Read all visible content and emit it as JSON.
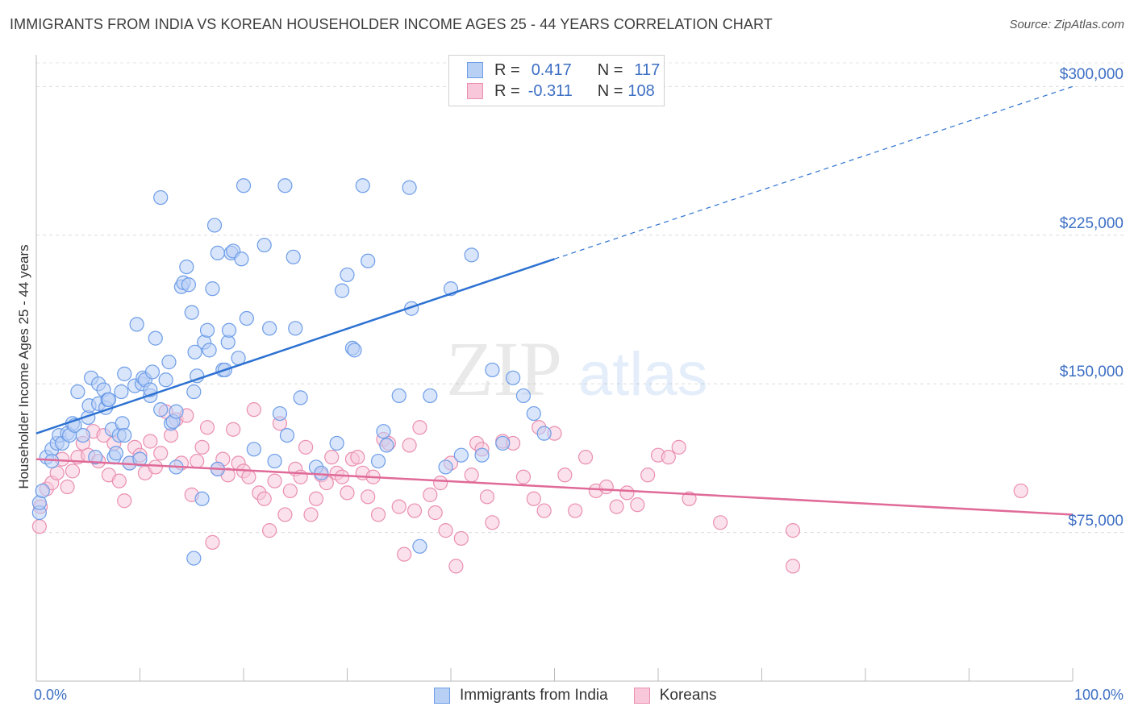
{
  "title": "IMMIGRANTS FROM INDIA VS KOREAN HOUSEHOLDER INCOME AGES 25 - 44 YEARS CORRELATION CHART",
  "source": "Source: ZipAtlas.com",
  "watermark": {
    "zip": "ZIP",
    "atlas": "atlas"
  },
  "legend": {
    "r_label": "R =",
    "n_label": "N =",
    "india": {
      "r": "0.417",
      "n": "117"
    },
    "korea": {
      "r": "-0.311",
      "n": "108"
    }
  },
  "chart_data": {
    "type": "scatter",
    "title": "IMMIGRANTS FROM INDIA VS KOREAN HOUSEHOLDER INCOME AGES 25 - 44 YEARS CORRELATION CHART",
    "xlabel": "",
    "ylabel": "Householder Income Ages 25 - 44 years",
    "xlim": [
      0,
      100
    ],
    "ylim": [
      0,
      316000
    ],
    "x_tick_labels": [
      "0.0%",
      "100.0%"
    ],
    "y_ticks": [
      75000,
      150000,
      225000,
      300000
    ],
    "y_tick_labels": [
      "$75,000",
      "$150,000",
      "$225,000",
      "$300,000"
    ],
    "grid": true,
    "legend_position": "top-center",
    "colors": {
      "india": "#6d9de8",
      "india_fill": "#b9d0f5",
      "india_line": "#2d72d2",
      "korea": "#ea8fb0",
      "korea_fill": "#f8c8da",
      "korea_line": "#e06a98"
    },
    "series": [
      {
        "name": "Immigrants from India",
        "trend": {
          "x": [
            0,
            50
          ],
          "y": [
            125000,
            213000
          ],
          "dashed_to": [
            100,
            300000
          ]
        },
        "points": [
          [
            0.3,
            85000
          ],
          [
            0.3,
            90000
          ],
          [
            0.6,
            96000
          ],
          [
            1,
            113000
          ],
          [
            1.5,
            117000
          ],
          [
            1.5,
            111000
          ],
          [
            2,
            120000
          ],
          [
            2.2,
            124000
          ],
          [
            2.5,
            120000
          ],
          [
            3,
            125000
          ],
          [
            3.2,
            124000
          ],
          [
            3.5,
            130000
          ],
          [
            3.7,
            129000
          ],
          [
            4,
            146000
          ],
          [
            4.5,
            124000
          ],
          [
            5,
            133000
          ],
          [
            5.1,
            139000
          ],
          [
            5.3,
            153000
          ],
          [
            5.7,
            113000
          ],
          [
            6,
            140000
          ],
          [
            6,
            150000
          ],
          [
            6.5,
            147000
          ],
          [
            6.7,
            138000
          ],
          [
            6.9,
            142000
          ],
          [
            7,
            142000
          ],
          [
            7.3,
            127000
          ],
          [
            7.5,
            113000
          ],
          [
            7.7,
            115000
          ],
          [
            8,
            124000
          ],
          [
            8.2,
            146000
          ],
          [
            8.3,
            130000
          ],
          [
            8.5,
            155000
          ],
          [
            8.5,
            124000
          ],
          [
            9,
            110000
          ],
          [
            9.5,
            149000
          ],
          [
            9.7,
            180000
          ],
          [
            10,
            112000
          ],
          [
            10.2,
            150000
          ],
          [
            10.3,
            153000
          ],
          [
            10.5,
            152000
          ],
          [
            11,
            144000
          ],
          [
            11,
            147000
          ],
          [
            11.2,
            156000
          ],
          [
            11.5,
            173000
          ],
          [
            12,
            244000
          ],
          [
            12,
            137000
          ],
          [
            12.5,
            152000
          ],
          [
            12.8,
            161000
          ],
          [
            13,
            130000
          ],
          [
            13.2,
            131000
          ],
          [
            13.5,
            136000
          ],
          [
            13.5,
            108000
          ],
          [
            14,
            199000
          ],
          [
            14.2,
            201000
          ],
          [
            14.5,
            209000
          ],
          [
            14.7,
            200000
          ],
          [
            15,
            186000
          ],
          [
            15.2,
            146000
          ],
          [
            15.2,
            62000
          ],
          [
            15.3,
            166000
          ],
          [
            15.5,
            154000
          ],
          [
            16,
            92000
          ],
          [
            16.2,
            171000
          ],
          [
            16.5,
            177000
          ],
          [
            16.7,
            167000
          ],
          [
            17,
            198000
          ],
          [
            17.2,
            230000
          ],
          [
            17.5,
            216000
          ],
          [
            17.5,
            107000
          ],
          [
            18,
            157000
          ],
          [
            18.2,
            157000
          ],
          [
            18.5,
            171000
          ],
          [
            18.6,
            177000
          ],
          [
            18.8,
            216000
          ],
          [
            19,
            217000
          ],
          [
            19.5,
            163000
          ],
          [
            19.8,
            213000
          ],
          [
            20,
            250000
          ],
          [
            20.3,
            183000
          ],
          [
            21,
            117000
          ],
          [
            22,
            220000
          ],
          [
            22.5,
            178000
          ],
          [
            23,
            111000
          ],
          [
            23.5,
            135000
          ],
          [
            24,
            250000
          ],
          [
            24.2,
            124000
          ],
          [
            24.8,
            214000
          ],
          [
            25,
            178000
          ],
          [
            25.5,
            143000
          ],
          [
            27,
            108000
          ],
          [
            27.5,
            105000
          ],
          [
            29,
            120000
          ],
          [
            29.5,
            197000
          ],
          [
            30,
            205000
          ],
          [
            30.5,
            168000
          ],
          [
            30.7,
            167000
          ],
          [
            31.5,
            250000
          ],
          [
            32,
            212000
          ],
          [
            33,
            111000
          ],
          [
            33.5,
            126000
          ],
          [
            33.8,
            119000
          ],
          [
            35,
            144000
          ],
          [
            36,
            249000
          ],
          [
            36.2,
            188000
          ],
          [
            37,
            68000
          ],
          [
            38,
            144000
          ],
          [
            39.5,
            108000
          ],
          [
            40,
            198000
          ],
          [
            41,
            114000
          ],
          [
            42,
            215000
          ],
          [
            43,
            114000
          ],
          [
            44,
            157000
          ],
          [
            45,
            120000
          ],
          [
            46,
            153000
          ],
          [
            47,
            144000
          ],
          [
            48,
            135000
          ],
          [
            49,
            125000
          ]
        ]
      },
      {
        "name": "Koreans",
        "trend": {
          "x": [
            0,
            100
          ],
          "y": [
            112000,
            84000
          ]
        },
        "points": [
          [
            0.3,
            78000
          ],
          [
            0.4,
            88000
          ],
          [
            1,
            97000
          ],
          [
            1.5,
            100000
          ],
          [
            2,
            105000
          ],
          [
            2.5,
            112000
          ],
          [
            3,
            98000
          ],
          [
            3.5,
            106000
          ],
          [
            4,
            113000
          ],
          [
            4.5,
            120000
          ],
          [
            5,
            114000
          ],
          [
            5.5,
            126000
          ],
          [
            6,
            111000
          ],
          [
            6.5,
            124000
          ],
          [
            7,
            104000
          ],
          [
            7.5,
            120000
          ],
          [
            8,
            101000
          ],
          [
            8.5,
            91000
          ],
          [
            9,
            110000
          ],
          [
            9.5,
            118000
          ],
          [
            10,
            114000
          ],
          [
            10.5,
            105000
          ],
          [
            11,
            121000
          ],
          [
            11.5,
            108000
          ],
          [
            12,
            115000
          ],
          [
            12.5,
            136000
          ],
          [
            13,
            124000
          ],
          [
            13.5,
            132000
          ],
          [
            14,
            110000
          ],
          [
            14.5,
            134000
          ],
          [
            15,
            94000
          ],
          [
            15.5,
            111000
          ],
          [
            16,
            118000
          ],
          [
            16.5,
            128000
          ],
          [
            17,
            70000
          ],
          [
            17.5,
            107000
          ],
          [
            18,
            112000
          ],
          [
            18.5,
            104000
          ],
          [
            19,
            127000
          ],
          [
            19.5,
            110000
          ],
          [
            20,
            106000
          ],
          [
            20.5,
            103000
          ],
          [
            21,
            137000
          ],
          [
            21.5,
            95000
          ],
          [
            22,
            92000
          ],
          [
            22.5,
            76000
          ],
          [
            23,
            101000
          ],
          [
            23.5,
            130000
          ],
          [
            24,
            84000
          ],
          [
            24.5,
            96000
          ],
          [
            25,
            107000
          ],
          [
            25.5,
            103000
          ],
          [
            26,
            118000
          ],
          [
            26.5,
            84000
          ],
          [
            27,
            92000
          ],
          [
            27.5,
            104000
          ],
          [
            28,
            100000
          ],
          [
            28.5,
            113000
          ],
          [
            29,
            105000
          ],
          [
            29.5,
            103000
          ],
          [
            30,
            95000
          ],
          [
            30.5,
            112000
          ],
          [
            31,
            113000
          ],
          [
            31.5,
            105000
          ],
          [
            32,
            93000
          ],
          [
            32.5,
            103000
          ],
          [
            33,
            84000
          ],
          [
            33.5,
            122000
          ],
          [
            34,
            120000
          ],
          [
            35,
            88000
          ],
          [
            35.5,
            64000
          ],
          [
            36,
            119000
          ],
          [
            36.5,
            86000
          ],
          [
            37,
            128000
          ],
          [
            38,
            94000
          ],
          [
            38.5,
            85000
          ],
          [
            39,
            100000
          ],
          [
            39.5,
            76000
          ],
          [
            40,
            110000
          ],
          [
            40.5,
            58000
          ],
          [
            41,
            72000
          ],
          [
            42,
            104000
          ],
          [
            42.5,
            120000
          ],
          [
            43,
            117000
          ],
          [
            43.5,
            93000
          ],
          [
            44,
            80000
          ],
          [
            45,
            121000
          ],
          [
            46,
            120000
          ],
          [
            47,
            103000
          ],
          [
            48,
            92000
          ],
          [
            48.5,
            128000
          ],
          [
            49,
            86000
          ],
          [
            50,
            125000
          ],
          [
            51,
            104000
          ],
          [
            52,
            86000
          ],
          [
            53,
            113000
          ],
          [
            54,
            96000
          ],
          [
            55,
            98000
          ],
          [
            56,
            88000
          ],
          [
            57,
            95000
          ],
          [
            58,
            89000
          ],
          [
            59,
            104000
          ],
          [
            60,
            114000
          ],
          [
            61,
            113000
          ],
          [
            62,
            118000
          ],
          [
            63,
            92000
          ],
          [
            66,
            80000
          ],
          [
            73,
            76000
          ],
          [
            73,
            58000
          ],
          [
            95,
            96000
          ]
        ]
      }
    ]
  }
}
